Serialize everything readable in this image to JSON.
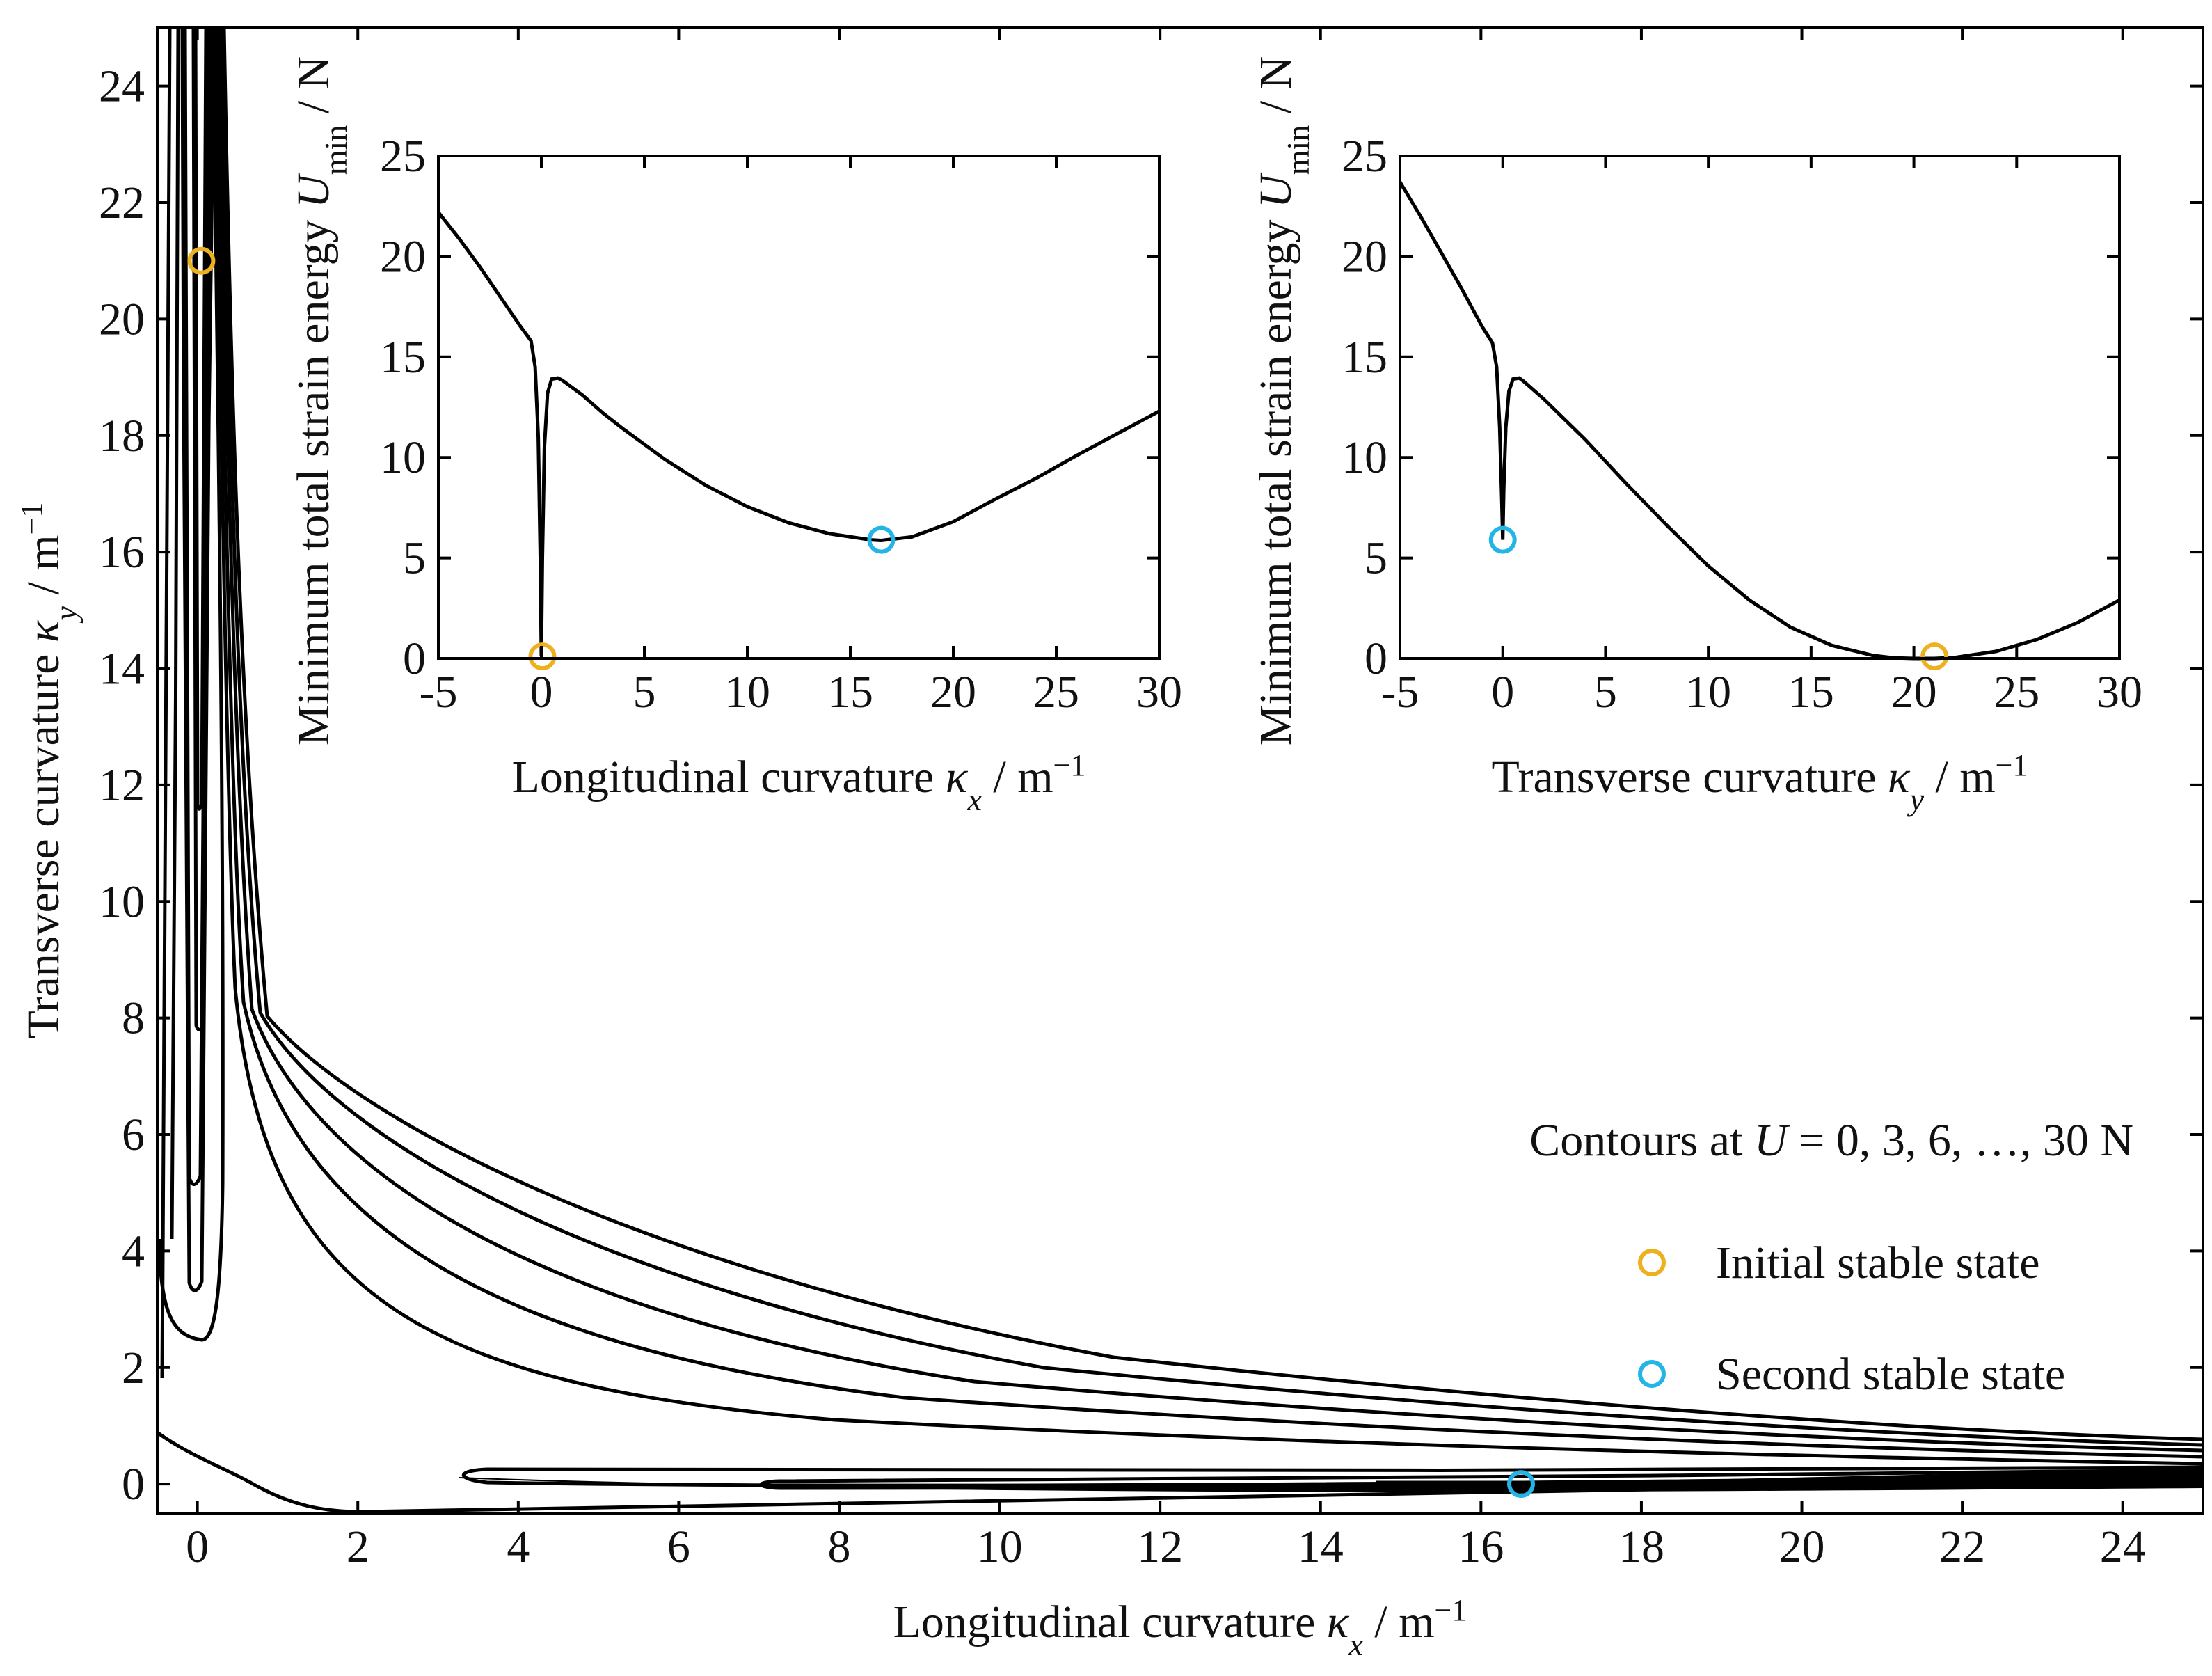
{
  "chart_data": [
    {
      "id": "main",
      "type": "contour",
      "x_range": [
        -0.5,
        25
      ],
      "y_range": [
        -0.5,
        25
      ],
      "x_ticks": [
        0,
        2,
        4,
        6,
        8,
        10,
        12,
        14,
        16,
        18,
        20,
        22,
        24
      ],
      "x_tick_labels": [
        "0",
        "2",
        "4",
        "6",
        "8",
        "10",
        "12",
        "14",
        "16",
        "18",
        "20",
        "22",
        "24"
      ],
      "y_ticks": [
        0,
        2,
        4,
        6,
        8,
        10,
        12,
        14,
        16,
        18,
        20,
        22,
        24
      ],
      "y_tick_labels": [
        "0",
        "2",
        "4",
        "6",
        "8",
        "10",
        "12",
        "14",
        "16",
        "18",
        "20",
        "22",
        "24"
      ],
      "xlabel": {
        "text": "Longitudinal curvature ",
        "symbol": "κ",
        "subscript": "x",
        "unit": " / m",
        "exponent": "−1"
      },
      "ylabel": {
        "text": "Transverse curvature ",
        "symbol": "κ",
        "subscript": "y",
        "unit": " / m",
        "exponent": "−1"
      },
      "contour_levels": [
        0,
        3,
        6,
        9,
        12,
        15,
        18,
        21,
        24,
        27,
        30
      ],
      "contour_level_unit": "N",
      "contour_note": {
        "prefix": "Contours at ",
        "var": "U",
        "suffix": " = 0, 3, 6, …, 30 N"
      },
      "points": [
        {
          "name": "Initial stable state",
          "x": 0.05,
          "y": 21.0,
          "color": "#EDB120"
        },
        {
          "name": "Second stable state",
          "x": 16.5,
          "y": 0.0,
          "color": "#22B5E6"
        }
      ],
      "legend": [
        {
          "label": "Initial stable state",
          "color": "#EDB120"
        },
        {
          "label": "Second stable state",
          "color": "#22B5E6"
        }
      ],
      "legend_position": "right"
    },
    {
      "id": "inset-left",
      "type": "line",
      "x": [
        -5,
        -4,
        -3,
        -2,
        -1,
        -0.5,
        -0.3,
        -0.15,
        -0.05,
        0,
        0.05,
        0.15,
        0.3,
        0.5,
        0.8,
        1,
        2,
        3,
        4,
        6,
        8,
        10,
        12,
        14,
        16,
        16.5,
        18,
        20,
        22,
        24,
        26,
        28,
        30
      ],
      "y": [
        22.2,
        20.9,
        19.5,
        18.0,
        16.5,
        15.8,
        14.5,
        11.0,
        5.0,
        0.1,
        5.0,
        10.5,
        13.2,
        13.9,
        13.95,
        13.85,
        13.1,
        12.2,
        11.4,
        9.9,
        8.6,
        7.55,
        6.75,
        6.2,
        5.9,
        5.87,
        6.05,
        6.8,
        7.9,
        8.95,
        10.1,
        11.2,
        12.3
      ],
      "xlim": [
        -5,
        30
      ],
      "ylim": [
        0,
        25
      ],
      "x_ticks": [
        -5,
        0,
        5,
        10,
        15,
        20,
        25,
        30
      ],
      "x_tick_labels": [
        "-5",
        "0",
        "5",
        "10",
        "15",
        "20",
        "25",
        "30"
      ],
      "y_ticks": [
        0,
        5,
        10,
        15,
        20,
        25
      ],
      "y_tick_labels": [
        "0",
        "5",
        "10",
        "15",
        "20",
        "25"
      ],
      "xlabel": {
        "text": "Longitudinal curvature ",
        "symbol": "κ",
        "subscript": "x",
        "unit": " / m",
        "exponent": "−1"
      },
      "ylabel": {
        "text": "Minimum total strain energy ",
        "symbol": "U",
        "subscript": "min",
        "unit": " / N"
      },
      "points": [
        {
          "name": "Initial stable state",
          "x": 0.05,
          "y": 0.1,
          "color": "#EDB120"
        },
        {
          "name": "Second stable state",
          "x": 16.5,
          "y": 5.9,
          "color": "#22B5E6"
        }
      ]
    },
    {
      "id": "inset-right",
      "type": "line",
      "x": [
        -5,
        -4,
        -3,
        -2,
        -1,
        -0.5,
        -0.3,
        -0.15,
        -0.05,
        0,
        0.05,
        0.15,
        0.3,
        0.5,
        0.8,
        1,
        2,
        3,
        4,
        6,
        8,
        10,
        12,
        14,
        16,
        18,
        19,
        20,
        21,
        22,
        24,
        26,
        28,
        30
      ],
      "y": [
        23.7,
        22.0,
        20.2,
        18.4,
        16.5,
        15.7,
        14.5,
        11.5,
        8.0,
        5.9,
        8.5,
        11.5,
        13.3,
        13.9,
        13.95,
        13.8,
        12.9,
        11.9,
        10.9,
        8.7,
        6.6,
        4.6,
        2.9,
        1.55,
        0.65,
        0.15,
        0.03,
        0.0,
        0.0,
        0.05,
        0.35,
        0.95,
        1.8,
        2.9
      ],
      "xlim": [
        -5,
        30
      ],
      "ylim": [
        0,
        25
      ],
      "x_ticks": [
        -5,
        0,
        5,
        10,
        15,
        20,
        25,
        30
      ],
      "x_tick_labels": [
        "-5",
        "0",
        "5",
        "10",
        "15",
        "20",
        "25",
        "30"
      ],
      "y_ticks": [
        0,
        5,
        10,
        15,
        20,
        25
      ],
      "y_tick_labels": [
        "0",
        "5",
        "10",
        "15",
        "20",
        "25"
      ],
      "xlabel": {
        "text": "Transverse curvature  ",
        "symbol": "κ",
        "subscript": "y",
        "unit": " / m",
        "exponent": "−1"
      },
      "ylabel": {
        "text": "Minimum total strain energy ",
        "symbol": "U",
        "subscript": "min",
        "unit": " / N"
      },
      "points": [
        {
          "name": "Second stable state",
          "x": 0.0,
          "y": 5.9,
          "color": "#22B5E6"
        },
        {
          "name": "Initial stable state",
          "x": 21.0,
          "y": 0.1,
          "color": "#EDB120"
        }
      ]
    }
  ]
}
